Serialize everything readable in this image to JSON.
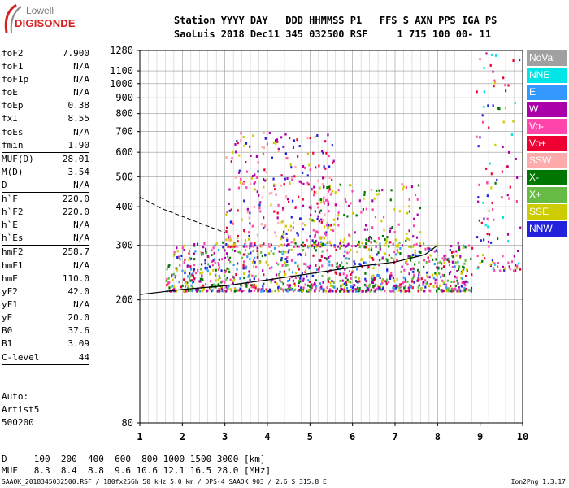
{
  "logo": {
    "top": "Lowell",
    "bottom": "DIGISONDE"
  },
  "header": {
    "line1": "Station YYYY DAY   DDD HHMMSS P1   FFS S AXN PPS IGA PS",
    "line2": "SaoLuis 2018 Dec11 345 032500 RSF     1 715 100 00- 11"
  },
  "params": [
    {
      "name": "foF2",
      "value": "7.900"
    },
    {
      "name": "foF1",
      "value": "N/A"
    },
    {
      "name": "foF1p",
      "value": "N/A"
    },
    {
      "name": "foE",
      "value": "N/A"
    },
    {
      "name": "foEp",
      "value": "0.38"
    },
    {
      "name": "fxI",
      "value": "8.55"
    },
    {
      "name": "foEs",
      "value": "N/A"
    },
    {
      "name": "fmin",
      "value": "1.90",
      "sep": true
    },
    {
      "name": "MUF(D)",
      "value": "28.01"
    },
    {
      "name": "M(D)",
      "value": "3.54"
    },
    {
      "name": "D",
      "value": "N/A",
      "sep": true
    },
    {
      "name": "h`F",
      "value": "220.0"
    },
    {
      "name": "h`F2",
      "value": "220.0"
    },
    {
      "name": "h`E",
      "value": "N/A"
    },
    {
      "name": "h`Es",
      "value": "N/A",
      "sep": true
    },
    {
      "name": "hmF2",
      "value": "258.7"
    },
    {
      "name": "hmF1",
      "value": "N/A"
    },
    {
      "name": "hmE",
      "value": "110.0"
    },
    {
      "name": "yF2",
      "value": "42.0"
    },
    {
      "name": "yF1",
      "value": "N/A"
    },
    {
      "name": "yE",
      "value": "20.0"
    },
    {
      "name": "B0",
      "value": "37.6"
    },
    {
      "name": "B1",
      "value": "3.09",
      "sep": true
    },
    {
      "name": "C-level",
      "value": "44",
      "sep": true
    }
  ],
  "auto": {
    "line1": "Auto:",
    "line2": "Artist5",
    "line3": "500200"
  },
  "bottom_table": {
    "row1": "D     100  200  400  600  800 1000 1500 3000 [km]",
    "row2": "MUF   8.3  8.4  8.8  9.6 10.6 12.1 16.5 28.0 [MHz]"
  },
  "footer": {
    "left": "SAAOK_2018345032500.RSF / 180fx256h 50 kHz 5.0 km / DPS-4 SAAOK 903 / 2.6 S 315.8 E",
    "right": "Ion2Png 1.3.17"
  },
  "legend": [
    {
      "label": "NoVal",
      "color": "#a0a0a0"
    },
    {
      "label": "NNE",
      "color": "#00e5e5"
    },
    {
      "label": "E",
      "color": "#3399ff"
    },
    {
      "label": "W",
      "color": "#aa00aa"
    },
    {
      "label": "Vo-",
      "color": "#ff44aa"
    },
    {
      "label": "Vo+",
      "color": "#ee0033"
    },
    {
      "label": "SSW",
      "color": "#ffaaaa"
    },
    {
      "label": "X-",
      "color": "#007700"
    },
    {
      "label": "X+",
      "color": "#66bb44"
    },
    {
      "label": "SSE",
      "color": "#cccc00"
    },
    {
      "label": "NNW",
      "color": "#2222dd"
    }
  ],
  "chart_data": {
    "type": "scatter",
    "x_ticks": [
      "1",
      "2",
      "3",
      "4",
      "5",
      "6",
      "7",
      "8",
      "9",
      "10"
    ],
    "y_ticks": [
      "80",
      "200",
      "300",
      "400",
      "500",
      "600",
      "700",
      "800",
      "900",
      "1000",
      "1100",
      "1280"
    ],
    "xlim": [
      1,
      10
    ],
    "ylim": [
      80,
      1280
    ],
    "y_scale": "logarithmic",
    "grid": true,
    "profile_solid": [
      [
        1.0,
        208
      ],
      [
        2.0,
        216
      ],
      [
        3.0,
        222
      ],
      [
        4.0,
        232
      ],
      [
        5.0,
        243
      ],
      [
        6.0,
        255
      ],
      [
        7.0,
        265
      ],
      [
        7.7,
        280
      ],
      [
        8.0,
        300
      ]
    ],
    "profile_dashed": [
      [
        1.0,
        430
      ],
      [
        1.5,
        395
      ],
      [
        2.0,
        372
      ],
      [
        2.5,
        350
      ],
      [
        3.0,
        330
      ]
    ],
    "clusters": [
      {
        "x": [
          1.6,
          8.8
        ],
        "y": [
          215,
          310
        ],
        "n": 1100,
        "colors": [
          "#ff44aa",
          "#ee0033",
          "#aa00aa",
          "#cccc00",
          "#2222dd",
          "#007700",
          "#66bb44",
          "#3399ff"
        ]
      },
      {
        "x": [
          3.0,
          5.6
        ],
        "y": [
          300,
          700
        ],
        "n": 350,
        "colors": [
          "#cccc00",
          "#aa00aa",
          "#ff44aa",
          "#ee0033",
          "#2222dd",
          "#ffaaaa"
        ]
      },
      {
        "x": [
          5.0,
          7.6
        ],
        "y": [
          300,
          480
        ],
        "n": 160,
        "colors": [
          "#cccc00",
          "#ff44aa",
          "#aa00aa",
          "#007700"
        ]
      },
      {
        "x": [
          8.9,
          9.95
        ],
        "y": [
          250,
          1280
        ],
        "n": 120,
        "colors": [
          "#2222dd",
          "#ee0033",
          "#ff44aa",
          "#cccc00",
          "#00e5e5",
          "#aa00aa",
          "#007700"
        ]
      }
    ]
  }
}
